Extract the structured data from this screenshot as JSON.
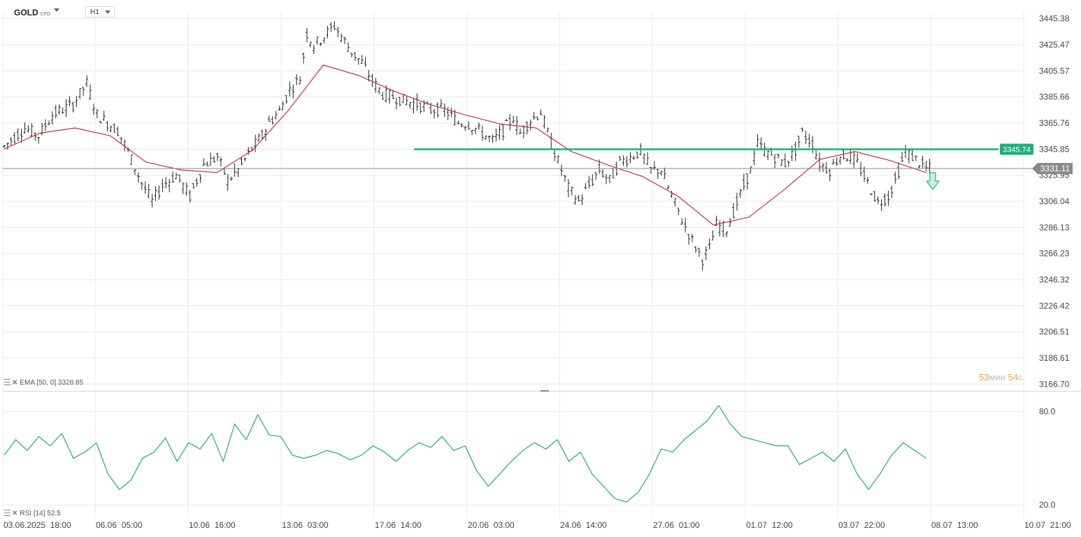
{
  "instrument": {
    "symbol": "GOLD",
    "type": "CFD",
    "timeframe": "H1"
  },
  "indicators": {
    "ema": {
      "label": "EMA",
      "params": "[50, 0]",
      "value": "3328.85"
    },
    "rsi": {
      "label": "RSI",
      "params": "[14]",
      "value": "52.5"
    }
  },
  "countdown": {
    "minutes": "53",
    "min_unit": "мин",
    "seconds": "54",
    "sec_unit": "с."
  },
  "colors": {
    "candle": "#222222",
    "ema": "#c8303a",
    "rsi": "#1faa78",
    "resistance": "#1fae7a",
    "current_price": "#8a8a8a",
    "grid": "#e4e8ec",
    "price_tag_green": "#1fae7a",
    "price_tag_grey": "#8a8a8a",
    "arrow": "#3cc4a0"
  },
  "icons": {
    "signal": "down-arrow-icon",
    "symbol_menu": "chevron-down-icon",
    "timeframe_menu": "chevron-down-icon"
  },
  "chart_data": [
    {
      "type": "candlestick",
      "title": "GOLD CFD H1",
      "x_tick_labels": [
        "03.06.2025  18:00",
        "06.06  05:00",
        "10.06  16:00",
        "13.06  03:00",
        "17.06  14:00",
        "20.06  03:00",
        "24.06  14:00",
        "27.06  01:00",
        "01.07  12:00",
        "03.07  22:00",
        "08.07  13:00",
        "10.07  21:00"
      ],
      "y_ticks": [
        3445.38,
        3425.47,
        3405.57,
        3385.66,
        3365.76,
        3345.85,
        3325.95,
        3306.04,
        3286.13,
        3266.23,
        3246.32,
        3226.42,
        3206.51,
        3186.61,
        3166.7
      ],
      "ylim": [
        3161.0,
        3450.0
      ],
      "grid": true,
      "price_path": [
        [
          0,
          3348
        ],
        [
          6,
          3362
        ],
        [
          10,
          3356
        ],
        [
          14,
          3372
        ],
        [
          20,
          3380
        ],
        [
          24,
          3396
        ],
        [
          27,
          3372
        ],
        [
          33,
          3360
        ],
        [
          36,
          3344
        ],
        [
          40,
          3320
        ],
        [
          43,
          3306
        ],
        [
          46,
          3318
        ],
        [
          50,
          3326
        ],
        [
          54,
          3310
        ],
        [
          58,
          3334
        ],
        [
          62,
          3340
        ],
        [
          65,
          3322
        ],
        [
          68,
          3330
        ],
        [
          72,
          3346
        ],
        [
          75,
          3356
        ],
        [
          77,
          3366
        ],
        [
          80,
          3375
        ],
        [
          83,
          3391
        ],
        [
          86,
          3400
        ],
        [
          88,
          3434
        ],
        [
          90,
          3425
        ],
        [
          93,
          3432
        ],
        [
          96,
          3440
        ],
        [
          98,
          3432
        ],
        [
          101,
          3420
        ],
        [
          104,
          3412
        ],
        [
          107,
          3398
        ],
        [
          110,
          3388
        ],
        [
          115,
          3384
        ],
        [
          120,
          3380
        ],
        [
          124,
          3376
        ],
        [
          128,
          3376
        ],
        [
          132,
          3366
        ],
        [
          135,
          3365
        ],
        [
          138,
          3360
        ],
        [
          142,
          3352
        ],
        [
          145,
          3360
        ],
        [
          148,
          3370
        ],
        [
          150,
          3358
        ],
        [
          153,
          3368
        ],
        [
          156,
          3374
        ],
        [
          159,
          3350
        ],
        [
          162,
          3330
        ],
        [
          164,
          3316
        ],
        [
          167,
          3306
        ],
        [
          170,
          3318
        ],
        [
          173,
          3330
        ],
        [
          176,
          3322
        ],
        [
          179,
          3336
        ],
        [
          182,
          3340
        ],
        [
          185,
          3344
        ],
        [
          188,
          3330
        ],
        [
          191,
          3330
        ],
        [
          194,
          3310
        ],
        [
          197,
          3292
        ],
        [
          200,
          3276
        ],
        [
          203,
          3262
        ],
        [
          205,
          3270
        ],
        [
          207,
          3288
        ],
        [
          210,
          3285
        ],
        [
          212,
          3298
        ],
        [
          215,
          3318
        ],
        [
          217,
          3330
        ],
        [
          219,
          3350
        ],
        [
          221,
          3345
        ],
        [
          224,
          3340
        ],
        [
          227,
          3335
        ],
        [
          230,
          3345
        ],
        [
          232,
          3358
        ],
        [
          235,
          3350
        ],
        [
          237,
          3335
        ],
        [
          240,
          3330
        ],
        [
          243,
          3341
        ],
        [
          246,
          3340
        ],
        [
          248,
          3335
        ],
        [
          251,
          3320
        ],
        [
          254,
          3305
        ],
        [
          257,
          3310
        ],
        [
          259,
          3322
        ],
        [
          262,
          3344
        ],
        [
          265,
          3338
        ],
        [
          268,
          3331
        ]
      ],
      "resistance_level": 3345.74,
      "current_price": 3331.11,
      "series": [
        {
          "name": "EMA [50, 0]",
          "values": [
            3346,
            3358,
            3362,
            3356,
            3336,
            3330,
            3328,
            3345,
            3375,
            3410,
            3402,
            3390,
            3380,
            3372,
            3365,
            3362,
            3344,
            3334,
            3325,
            3310,
            3288,
            3294,
            3315,
            3338,
            3344,
            3337,
            3328
          ]
        }
      ]
    },
    {
      "type": "line",
      "title": "RSI [14]",
      "y_ticks": [
        80.0,
        20.0
      ],
      "ylim": [
        12,
        92
      ],
      "grid": true,
      "series": [
        {
          "name": "RSI [14]",
          "values": [
            52,
            62,
            55,
            64,
            58,
            66,
            50,
            54,
            60,
            40,
            30,
            36,
            50,
            54,
            63,
            48,
            60,
            56,
            66,
            48,
            72,
            62,
            78,
            65,
            64,
            52,
            50,
            52,
            55,
            53,
            49,
            52,
            58,
            54,
            48,
            55,
            60,
            57,
            64,
            55,
            58,
            42,
            32,
            40,
            48,
            55,
            60,
            56,
            62,
            48,
            54,
            40,
            32,
            24,
            22,
            28,
            40,
            56,
            54,
            62,
            68,
            74,
            84,
            72,
            64,
            62,
            60,
            58,
            58,
            46,
            50,
            54,
            48,
            56,
            40,
            30,
            40,
            52,
            60,
            55,
            50
          ]
        }
      ]
    }
  ]
}
